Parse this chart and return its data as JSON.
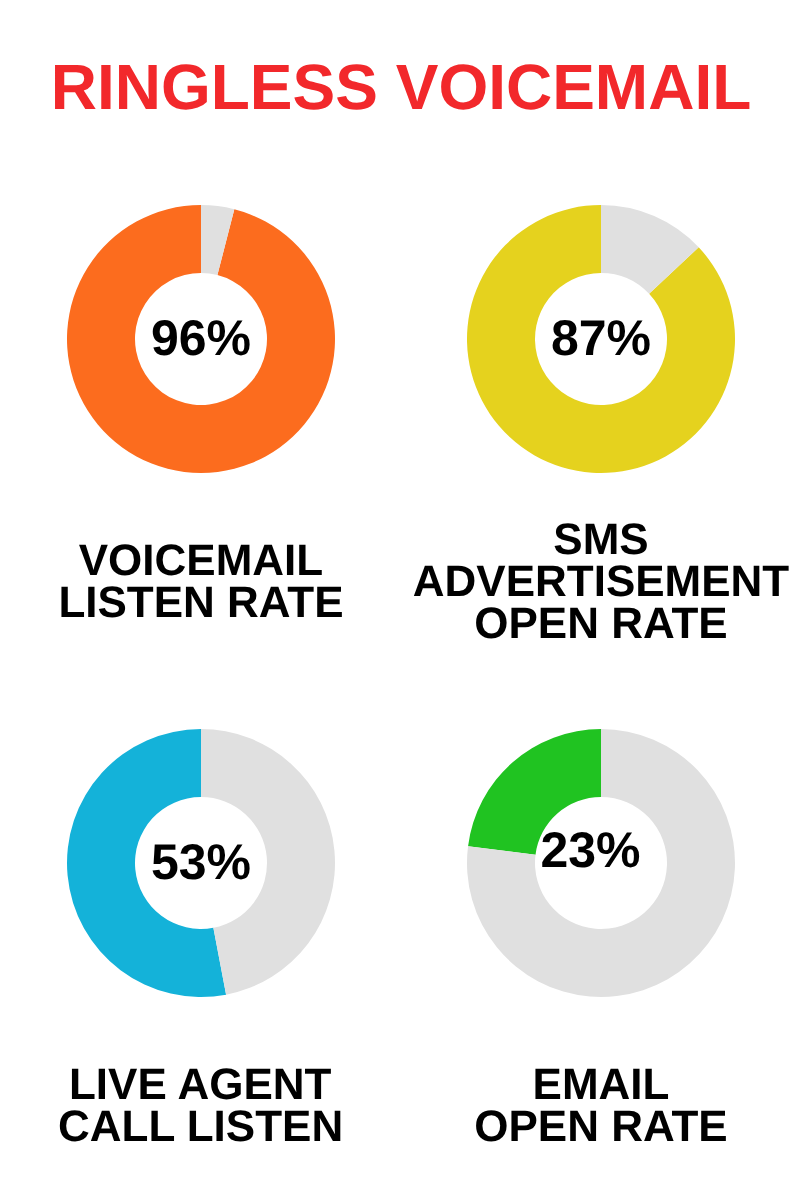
{
  "chart_data": [
    {
      "type": "other",
      "title": "RINGLESS VOICEMAIL"
    },
    {
      "type": "donut",
      "title": "VOICEMAIL\nLISTEN RATE",
      "categories": [
        null,
        null
      ],
      "values": [
        96,
        4
      ],
      "colors": [
        "#fc6c1e",
        "#e0e0e0"
      ],
      "value_labels": [
        "96%",
        null
      ]
    },
    {
      "type": "donut",
      "title": "SMS\nADVERTISEMENT\nOPEN RATE",
      "categories": [
        null,
        null
      ],
      "values": [
        87,
        13
      ],
      "colors": [
        "#e5d21e",
        "#e0e0e0"
      ],
      "value_labels": [
        "87%",
        null
      ]
    },
    {
      "type": "donut",
      "title": "LIVE AGENT\nCALL LISTEN",
      "categories": [
        null,
        null
      ],
      "values": [
        53,
        47
      ],
      "colors": [
        "#14b2d9",
        "#e0e0e0"
      ],
      "value_labels": [
        "53%",
        null
      ]
    },
    {
      "type": "donut",
      "title": "EMAIL\nOPEN RATE",
      "categories": [
        null,
        null
      ],
      "values": [
        23,
        77
      ],
      "colors": [
        "#20c321",
        "#e0e0e0"
      ],
      "value_labels": [
        "23%",
        null
      ]
    }
  ]
}
